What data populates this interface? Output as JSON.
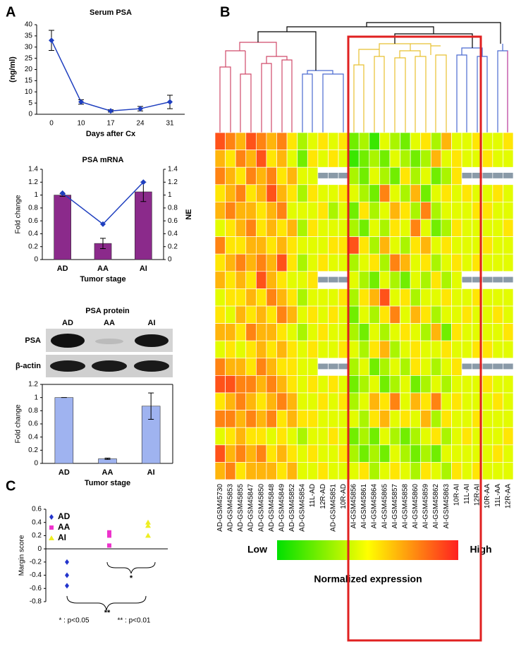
{
  "panel_labels": [
    "A",
    "B",
    "C"
  ],
  "chart_data": [
    {
      "type": "line",
      "title": "Serum PSA",
      "y_label": "(ng/ml)",
      "x_label": "Days after Cx",
      "categories": [
        "0",
        "10",
        "17",
        "24",
        "31"
      ],
      "series": [
        {
          "color": "#1f3fbf",
          "values": [
            33,
            5.5,
            1.5,
            2.5,
            5.5
          ],
          "errors": [
            4.5,
            1,
            0.5,
            1,
            3
          ]
        }
      ],
      "ylim": [
        0,
        40
      ],
      "yticks": [
        0,
        5,
        10,
        15,
        20,
        25,
        30,
        35,
        40
      ]
    },
    {
      "type": "bar",
      "title": "PSA mRNA",
      "y_label": "Fold change",
      "y2_label": "NE",
      "x_label": "Tumor stage",
      "categories": [
        "AD",
        "AA",
        "AI"
      ],
      "series": [
        {
          "color": "#8b2a8b",
          "values": [
            1,
            0.25,
            1.05
          ],
          "errors": [
            0.02,
            0.08,
            0.15
          ]
        },
        {
          "color": "#1f3fbf",
          "values": [
            1.03,
            0.55,
            1.2
          ],
          "axis": "y2",
          "kind": "line"
        }
      ],
      "ylim": [
        0,
        1.4
      ],
      "yticks": [
        0,
        0.2,
        0.4,
        0.6,
        0.8,
        1,
        1.2,
        1.4
      ],
      "y2lim": [
        0,
        1.4
      ],
      "y2ticks": [
        0,
        0.2,
        0.4,
        0.6,
        0.8,
        1,
        1.2,
        1.4
      ]
    },
    {
      "type": "bar",
      "title": "PSA protein",
      "blot_rows": [
        "PSA",
        "β-actin"
      ],
      "blot_columns": [
        "AD",
        "AA",
        "AI"
      ],
      "y_label": "Fold change",
      "x_label": "Tumor stage",
      "categories": [
        "AD",
        "AA",
        "AI"
      ],
      "series": [
        {
          "color": "#9fb3f0",
          "values": [
            1,
            0.07,
            0.87
          ],
          "errors": [
            0,
            0.01,
            0.2
          ]
        }
      ],
      "ylim": [
        0,
        1.2
      ],
      "yticks": [
        0,
        0.2,
        0.4,
        0.6,
        0.8,
        1,
        1.2
      ]
    },
    {
      "type": "scatter",
      "y_label": "Margin score",
      "series": [
        {
          "name": "AD",
          "color": "#2233cc",
          "marker": "diamond",
          "values": [
            -0.2,
            -0.4,
            -0.56
          ]
        },
        {
          "name": "AA",
          "color": "#ee33cc",
          "marker": "square",
          "values": [
            0.25,
            0.2,
            0.05
          ]
        },
        {
          "name": "AI",
          "color": "#eeee22",
          "marker": "triangle",
          "values": [
            0.4,
            0.35,
            0.2
          ]
        }
      ],
      "ylim": [
        -0.8,
        0.6
      ],
      "yticks": [
        -0.8,
        -0.6,
        -0.4,
        -0.2,
        0,
        0.2,
        0.4,
        0.6
      ],
      "annotations": [
        "*",
        "**",
        "* : p<0.05",
        "** : p<0.01"
      ]
    },
    {
      "type": "heatmap",
      "legend_low": "Low",
      "legend_high": "High",
      "legend_title": "Normalized expression",
      "colors": [
        "#00e000",
        "#ffff00",
        "#ff2020"
      ],
      "zlim": [
        0,
        9
      ],
      "missing_color": "#8a9aa8",
      "columns": [
        "AD-GSM45730",
        "AD-GSM45853",
        "AD-GSM45855",
        "AD-GSM45847",
        "AD-GSM45850",
        "AD-GSM45848",
        "AD-GSM45849",
        "AD-GSM45852",
        "AD-GSM45854",
        "11L-AD",
        "12R-AD",
        "AD-GSM45851",
        "10R-AD",
        "AI-GSM45856",
        "AI-GSM45861",
        "AI-GSM45864",
        "AI-GSM45865",
        "AI-GSM45857",
        "AI-GSM45858",
        "AI-GSM45860",
        "AI-GSM45859",
        "AI-GSM45862",
        "AI-GSM45863",
        "10R-AI",
        "11L-AI",
        "12R-AI",
        "10R-AA",
        "11L-AA",
        "12R-AA"
      ],
      "values": [
        [
          8,
          7,
          6,
          8,
          7,
          6,
          7,
          5,
          3,
          4,
          5,
          4,
          5,
          2,
          3,
          1,
          4,
          3,
          2,
          4,
          5,
          3,
          6,
          4,
          4,
          5,
          4,
          4,
          5
        ],
        [
          6,
          5,
          7,
          6,
          8,
          5,
          6,
          4,
          2,
          5,
          4,
          5,
          4,
          1,
          2,
          3,
          2,
          4,
          3,
          2,
          3,
          6,
          4,
          5,
          4,
          4,
          5,
          4,
          4
        ],
        [
          7,
          6,
          5,
          7,
          6,
          7,
          5,
          6,
          4,
          4,
          null,
          null,
          null,
          3,
          2,
          4,
          3,
          2,
          5,
          3,
          4,
          2,
          3,
          5,
          null,
          null,
          null,
          null,
          null
        ],
        [
          5,
          6,
          7,
          5,
          6,
          8,
          6,
          5,
          3,
          5,
          4,
          4,
          5,
          4,
          3,
          2,
          7,
          4,
          3,
          6,
          2,
          4,
          5,
          4,
          5,
          4,
          4,
          5,
          4
        ],
        [
          6,
          7,
          6,
          6,
          5,
          6,
          7,
          4,
          4,
          4,
          5,
          3,
          4,
          2,
          5,
          3,
          4,
          6,
          5,
          3,
          7,
          3,
          4,
          4,
          4,
          5,
          5,
          4,
          4
        ],
        [
          4,
          5,
          6,
          7,
          5,
          6,
          5,
          6,
          3,
          5,
          4,
          4,
          4,
          3,
          2,
          4,
          3,
          5,
          4,
          7,
          4,
          2,
          3,
          5,
          4,
          4,
          4,
          4,
          5
        ],
        [
          7,
          5,
          5,
          6,
          6,
          5,
          6,
          5,
          4,
          4,
          4,
          5,
          5,
          8,
          5,
          3,
          6,
          4,
          3,
          5,
          6,
          4,
          5,
          4,
          4,
          4,
          5,
          4,
          4
        ],
        [
          5,
          6,
          7,
          6,
          7,
          6,
          8,
          5,
          3,
          4,
          5,
          4,
          4,
          3,
          4,
          5,
          3,
          7,
          6,
          4,
          5,
          3,
          4,
          5,
          4,
          5,
          4,
          4,
          4
        ],
        [
          6,
          5,
          6,
          5,
          8,
          6,
          5,
          4,
          4,
          5,
          null,
          null,
          null,
          4,
          3,
          2,
          4,
          3,
          2,
          4,
          3,
          5,
          3,
          4,
          null,
          null,
          null,
          null,
          null
        ],
        [
          4,
          5,
          5,
          6,
          5,
          7,
          6,
          5,
          3,
          4,
          4,
          4,
          5,
          3,
          5,
          6,
          8,
          4,
          5,
          3,
          4,
          4,
          5,
          4,
          4,
          5,
          4,
          4,
          4
        ],
        [
          5,
          4,
          6,
          5,
          6,
          5,
          7,
          6,
          4,
          5,
          4,
          5,
          4,
          2,
          4,
          3,
          5,
          7,
          4,
          6,
          5,
          3,
          4,
          4,
          5,
          4,
          4,
          5,
          4
        ],
        [
          6,
          6,
          5,
          7,
          6,
          6,
          5,
          4,
          3,
          4,
          5,
          4,
          4,
          3,
          2,
          4,
          3,
          4,
          5,
          4,
          3,
          6,
          2,
          5,
          4,
          4,
          4,
          4,
          5
        ],
        [
          4,
          5,
          4,
          5,
          6,
          5,
          6,
          5,
          4,
          5,
          4,
          4,
          5,
          4,
          3,
          5,
          6,
          3,
          4,
          5,
          4,
          4,
          5,
          4,
          4,
          5,
          5,
          4,
          4
        ],
        [
          7,
          6,
          6,
          5,
          7,
          6,
          5,
          5,
          4,
          4,
          null,
          null,
          null,
          3,
          4,
          2,
          3,
          4,
          3,
          5,
          4,
          3,
          4,
          5,
          null,
          null,
          null,
          null,
          null
        ],
        [
          8,
          8,
          7,
          7,
          6,
          7,
          6,
          5,
          4,
          5,
          4,
          5,
          4,
          2,
          3,
          4,
          2,
          3,
          4,
          2,
          3,
          4,
          3,
          4,
          4,
          4,
          5,
          4,
          4
        ],
        [
          5,
          6,
          7,
          6,
          5,
          6,
          7,
          6,
          4,
          4,
          5,
          4,
          5,
          3,
          4,
          6,
          5,
          7,
          4,
          6,
          5,
          7,
          4,
          5,
          4,
          4,
          4,
          5,
          4
        ],
        [
          7,
          7,
          6,
          7,
          6,
          7,
          5,
          6,
          5,
          5,
          4,
          4,
          4,
          4,
          3,
          5,
          6,
          4,
          5,
          4,
          6,
          3,
          5,
          4,
          4,
          5,
          4,
          4,
          4
        ],
        [
          4,
          5,
          6,
          5,
          5,
          4,
          5,
          4,
          3,
          4,
          4,
          5,
          4,
          2,
          3,
          2,
          4,
          3,
          2,
          3,
          4,
          5,
          3,
          4,
          5,
          4,
          4,
          4,
          5
        ],
        [
          8,
          6,
          7,
          6,
          7,
          5,
          6,
          5,
          4,
          5,
          4,
          4,
          5,
          3,
          2,
          3,
          2,
          4,
          3,
          2,
          3,
          2,
          4,
          4,
          4,
          4,
          4,
          5,
          4
        ],
        [
          6,
          7,
          5,
          6,
          6,
          6,
          5,
          6,
          4,
          4,
          5,
          4,
          4,
          4,
          5,
          3,
          4,
          5,
          4,
          3,
          5,
          4,
          3,
          5,
          4,
          5,
          4,
          4,
          4
        ]
      ]
    }
  ]
}
